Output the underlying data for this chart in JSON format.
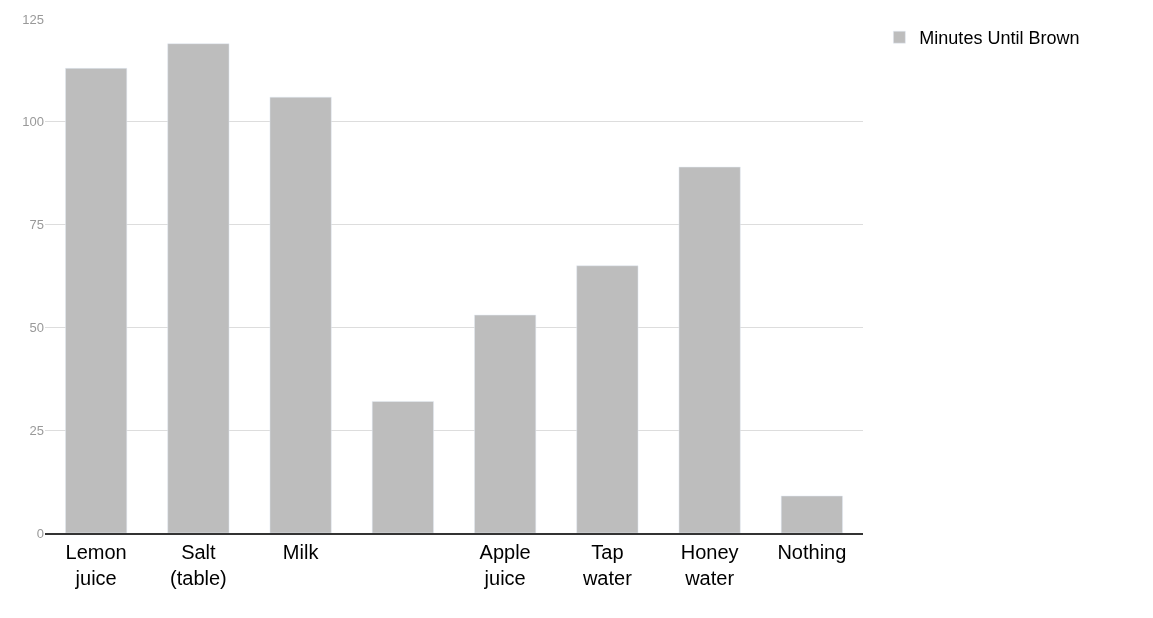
{
  "chart_data": {
    "type": "bar",
    "categories": [
      "Lemon juice",
      "Salt (table)",
      "Milk",
      null,
      "Apple juice",
      "Tap water",
      "Honey water",
      "Nothing"
    ],
    "series": [
      {
        "name": "Minutes Until Brown",
        "color": "#bdbdbd",
        "values": [
          113,
          119,
          106,
          32,
          53,
          65,
          89,
          9
        ]
      }
    ],
    "ylim": [
      0,
      125
    ],
    "yticks": [
      0,
      25,
      50,
      75,
      100,
      125
    ],
    "grid": "y",
    "legend": "top right"
  }
}
